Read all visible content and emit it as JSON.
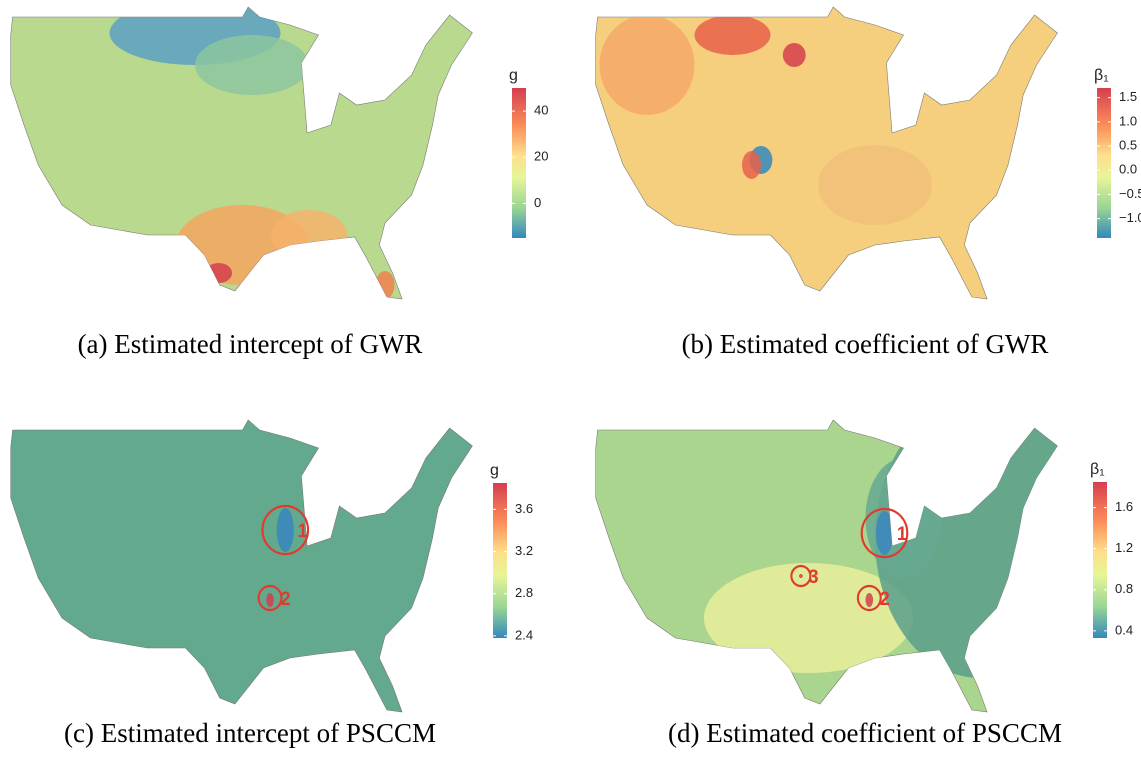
{
  "panels": [
    {
      "caption": "(a) Estimated intercept of GWR",
      "legend_title": "g",
      "ylim": [
        -15,
        50
      ],
      "yticks": [
        0,
        20,
        40
      ],
      "annotations": []
    },
    {
      "caption": "(b) Estimated coefficient of GWR",
      "legend_title": "β₁",
      "ylim": [
        -1.4,
        1.7
      ],
      "yticks": [
        {
          "value": -1.0,
          "label": "−1.0"
        },
        {
          "value": -0.5,
          "label": "−0.5"
        },
        {
          "value": 0,
          "label": "0.0"
        },
        0.5,
        {
          "value": 1.0,
          "label": "1.0"
        },
        1.5
      ],
      "annotations": []
    },
    {
      "caption": "(c) Estimated intercept of PSCCM",
      "legend_title": "g",
      "ylim": [
        2.38,
        3.85
      ],
      "yticks": [
        2.4,
        2.8,
        3.2,
        3.6
      ],
      "annotations": [
        "1",
        "2"
      ]
    },
    {
      "caption": "(d) Estimated coefficient of PSCCM",
      "legend_title": "β₁",
      "ylim": [
        0.33,
        1.85
      ],
      "yticks": [
        0.4,
        0.8,
        1.2,
        1.6
      ],
      "annotations": [
        "1",
        "2",
        "3"
      ]
    }
  ]
}
